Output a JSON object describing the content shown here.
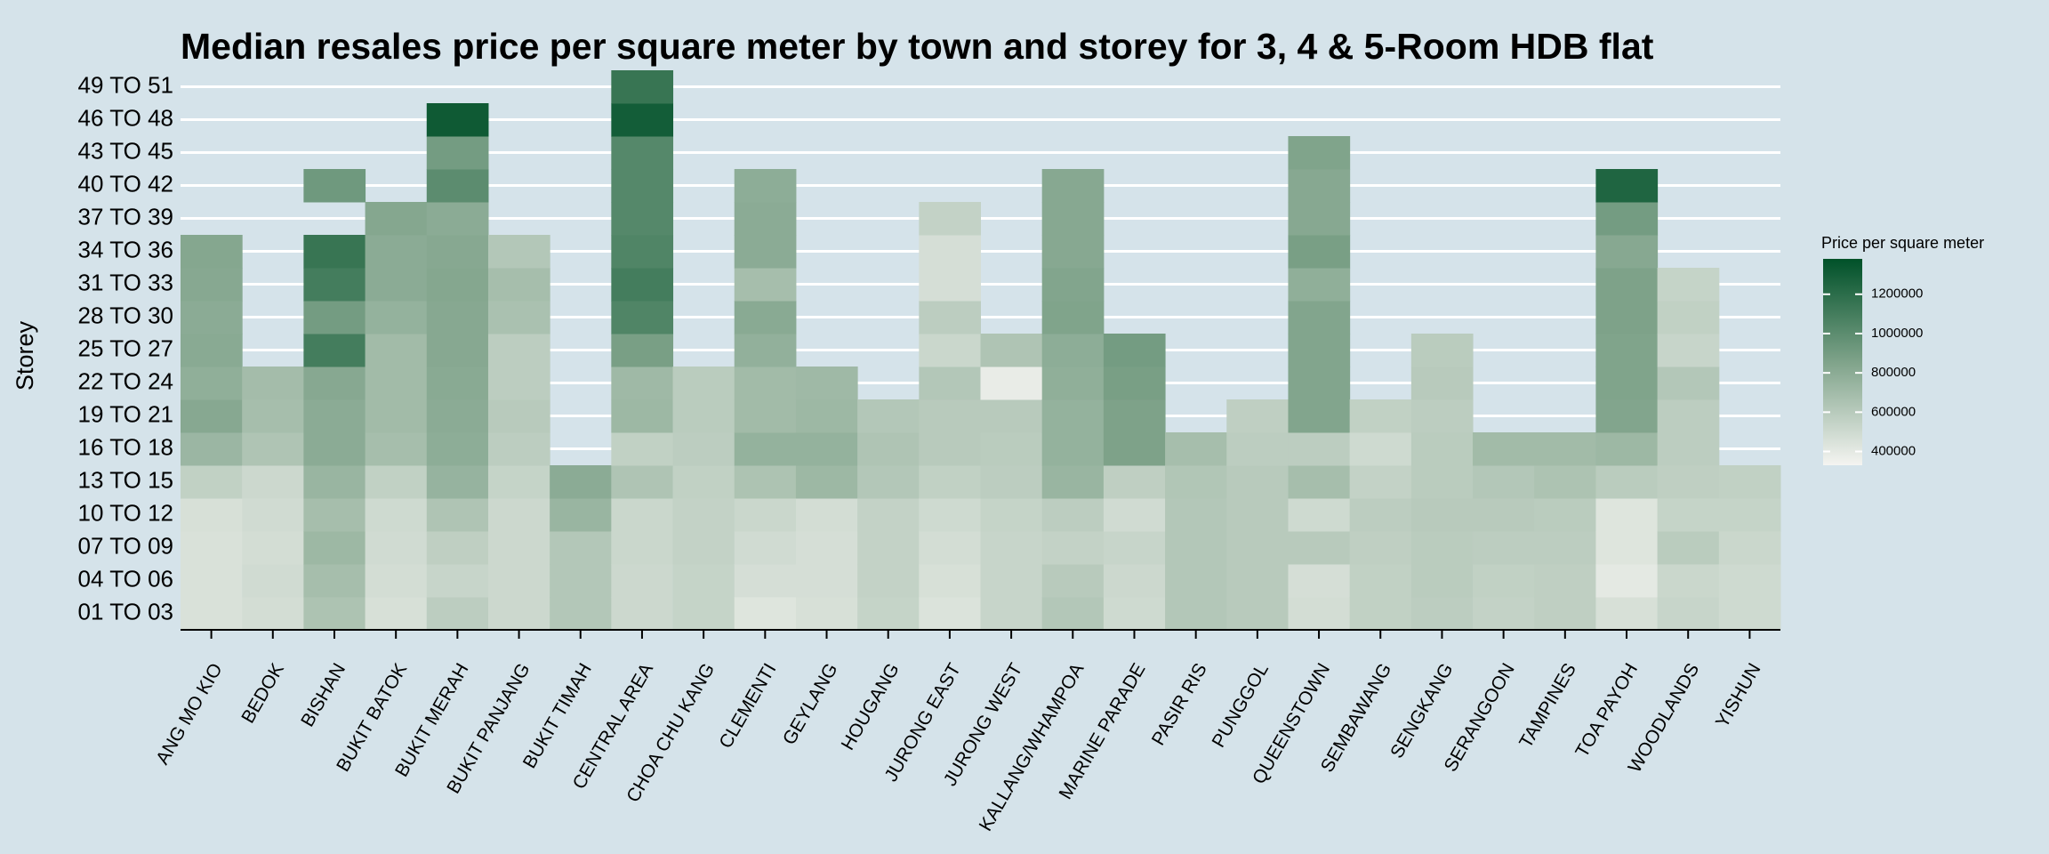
{
  "chart_data": {
    "type": "heatmap",
    "title": "Median resales price per square meter by town and storey for 3, 4 & 5-Room HDB flat",
    "y_label": "Storey",
    "categories": [
      "ANG MO KIO",
      "BEDOK",
      "BISHAN",
      "BUKIT BATOK",
      "BUKIT MERAH",
      "BUKIT PANJANG",
      "BUKIT TIMAH",
      "CENTRAL AREA",
      "CHOA CHU KANG",
      "CLEMENTI",
      "GEYLANG",
      "HOUGANG",
      "JURONG EAST",
      "JURONG WEST",
      "KALLANG/WHAMPOA",
      "MARINE PARADE",
      "PASIR RIS",
      "PUNGGOL",
      "QUEENSTOWN",
      "SEMBAWANG",
      "SENGKANG",
      "SERANGOON",
      "TAMPINES",
      "TOA PAYOH",
      "WOODLANDS",
      "YISHUN"
    ],
    "y_categories": [
      "01 TO 03",
      "04 TO 06",
      "07 TO 09",
      "10 TO 12",
      "13 TO 15",
      "16 TO 18",
      "19 TO 21",
      "22 TO 24",
      "25 TO 27",
      "28 TO 30",
      "31 TO 33",
      "34 TO 36",
      "37 TO 39",
      "40 TO 42",
      "43 TO 45",
      "46 TO 48",
      "49 TO 51"
    ],
    "values": [
      [
        450000,
        450000,
        450000,
        460000,
        560000,
        730000,
        820000,
        780000,
        810000,
        800000,
        820000,
        830000,
        null,
        null,
        null,
        null,
        null
      ],
      [
        480000,
        490000,
        480000,
        490000,
        510000,
        640000,
        680000,
        690000,
        null,
        null,
        null,
        null,
        null,
        null,
        null,
        null,
        null
      ],
      [
        650000,
        680000,
        720000,
        680000,
        740000,
        800000,
        800000,
        820000,
        1100000,
        900000,
        1100000,
        1150000,
        null,
        920000,
        null,
        null,
        null
      ],
      [
        460000,
        480000,
        490000,
        500000,
        560000,
        680000,
        700000,
        700000,
        700000,
        760000,
        800000,
        800000,
        830000,
        null,
        null,
        null,
        null
      ],
      [
        580000,
        530000,
        570000,
        640000,
        750000,
        790000,
        800000,
        810000,
        820000,
        820000,
        830000,
        820000,
        800000,
        1000000,
        900000,
        1320000,
        null
      ],
      [
        510000,
        510000,
        510000,
        510000,
        540000,
        580000,
        600000,
        580000,
        580000,
        660000,
        680000,
        620000,
        null,
        null,
        null,
        null,
        null
      ],
      [
        620000,
        620000,
        620000,
        740000,
        800000,
        null,
        null,
        null,
        null,
        null,
        null,
        null,
        null,
        null,
        null,
        null,
        null
      ],
      [
        510000,
        510000,
        520000,
        520000,
        640000,
        560000,
        720000,
        710000,
        880000,
        1050000,
        1100000,
        1050000,
        1030000,
        1030000,
        1030000,
        1300000,
        1150000
      ],
      [
        540000,
        540000,
        550000,
        550000,
        560000,
        580000,
        590000,
        590000,
        null,
        null,
        null,
        null,
        null,
        null,
        null,
        null,
        null
      ],
      [
        430000,
        470000,
        490000,
        520000,
        650000,
        760000,
        700000,
        700000,
        770000,
        810000,
        680000,
        800000,
        800000,
        790000,
        null,
        null,
        null
      ],
      [
        460000,
        470000,
        470000,
        480000,
        720000,
        760000,
        720000,
        710000,
        null,
        null,
        null,
        null,
        null,
        null,
        null,
        null,
        null
      ],
      [
        540000,
        550000,
        550000,
        550000,
        620000,
        640000,
        620000,
        null,
        null,
        null,
        null,
        null,
        null,
        null,
        null,
        null,
        null
      ],
      [
        440000,
        460000,
        480000,
        500000,
        560000,
        600000,
        600000,
        620000,
        520000,
        580000,
        470000,
        470000,
        550000,
        null,
        null,
        null,
        null
      ],
      [
        530000,
        530000,
        530000,
        540000,
        580000,
        590000,
        600000,
        380000,
        640000,
        null,
        null,
        null,
        null,
        null,
        null,
        null,
        null
      ],
      [
        620000,
        600000,
        550000,
        580000,
        740000,
        760000,
        760000,
        780000,
        790000,
        850000,
        840000,
        820000,
        820000,
        820000,
        null,
        null,
        null
      ],
      [
        500000,
        510000,
        530000,
        490000,
        570000,
        860000,
        860000,
        880000,
        900000,
        null,
        null,
        null,
        null,
        null,
        null,
        null,
        null
      ],
      [
        620000,
        620000,
        620000,
        620000,
        630000,
        680000,
        null,
        null,
        null,
        null,
        null,
        null,
        null,
        null,
        null,
        null,
        null
      ],
      [
        600000,
        600000,
        600000,
        600000,
        600000,
        580000,
        570000,
        null,
        null,
        null,
        null,
        null,
        null,
        null,
        null,
        null,
        null
      ],
      [
        480000,
        470000,
        600000,
        500000,
        680000,
        580000,
        840000,
        840000,
        840000,
        840000,
        780000,
        880000,
        820000,
        820000,
        850000,
        null,
        null
      ],
      [
        560000,
        560000,
        570000,
        580000,
        550000,
        500000,
        560000,
        null,
        null,
        null,
        null,
        null,
        null,
        null,
        null,
        null,
        null
      ],
      [
        580000,
        590000,
        590000,
        600000,
        590000,
        590000,
        580000,
        600000,
        590000,
        null,
        null,
        null,
        null,
        null,
        null,
        null,
        null
      ],
      [
        550000,
        560000,
        580000,
        600000,
        620000,
        700000,
        null,
        null,
        null,
        null,
        null,
        null,
        null,
        null,
        null,
        null,
        null
      ],
      [
        570000,
        570000,
        580000,
        590000,
        650000,
        700000,
        null,
        null,
        null,
        null,
        null,
        null,
        null,
        null,
        null,
        null,
        null
      ],
      [
        460000,
        400000,
        430000,
        430000,
        590000,
        720000,
        840000,
        850000,
        850000,
        860000,
        860000,
        820000,
        900000,
        1250000,
        null,
        null,
        null
      ],
      [
        530000,
        520000,
        590000,
        540000,
        570000,
        580000,
        580000,
        620000,
        530000,
        560000,
        540000,
        null,
        null,
        null,
        null,
        null,
        null
      ],
      [
        500000,
        500000,
        520000,
        540000,
        560000,
        null,
        null,
        null,
        null,
        null,
        null,
        null,
        null,
        null,
        null,
        null,
        null
      ]
    ],
    "colorscale": [
      "#f4f4f1",
      "#7fa38a",
      "#005129"
    ],
    "colorbar": {
      "title": "Price per square meter",
      "lim": [
        330000,
        1380000
      ],
      "ticks": [
        400000,
        600000,
        800000,
        1000000,
        1200000
      ]
    },
    "grid": true
  }
}
